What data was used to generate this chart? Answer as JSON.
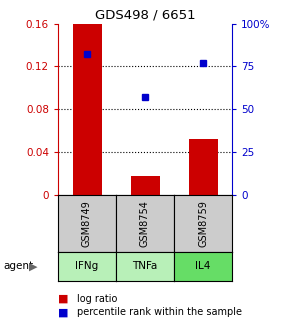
{
  "title": "GDS498 / 6651",
  "samples": [
    "GSM8749",
    "GSM8754",
    "GSM8759"
  ],
  "agents": [
    "IFNg",
    "TNFa",
    "IL4"
  ],
  "log_ratios": [
    0.16,
    0.018,
    0.052
  ],
  "percentile_ranks": [
    82,
    57,
    77
  ],
  "bar_color": "#cc0000",
  "dot_color": "#0000cc",
  "ylim_left": [
    0,
    0.16
  ],
  "ylim_right": [
    0,
    100
  ],
  "yticks_left": [
    0,
    0.04,
    0.08,
    0.12,
    0.16
  ],
  "yticks_right": [
    0,
    25,
    50,
    75,
    100
  ],
  "ytick_labels_left": [
    "0",
    "0.04",
    "0.08",
    "0.12",
    "0.16"
  ],
  "ytick_labels_right": [
    "0",
    "25",
    "50",
    "75",
    "100%"
  ],
  "grid_vals": [
    0.04,
    0.08,
    0.12
  ],
  "agent_colors": [
    "#b8f0b8",
    "#b8f0b8",
    "#66dd66"
  ],
  "sample_box_color": "#cccccc",
  "legend_items": [
    "log ratio",
    "percentile rank within the sample"
  ],
  "bar_width": 0.5
}
